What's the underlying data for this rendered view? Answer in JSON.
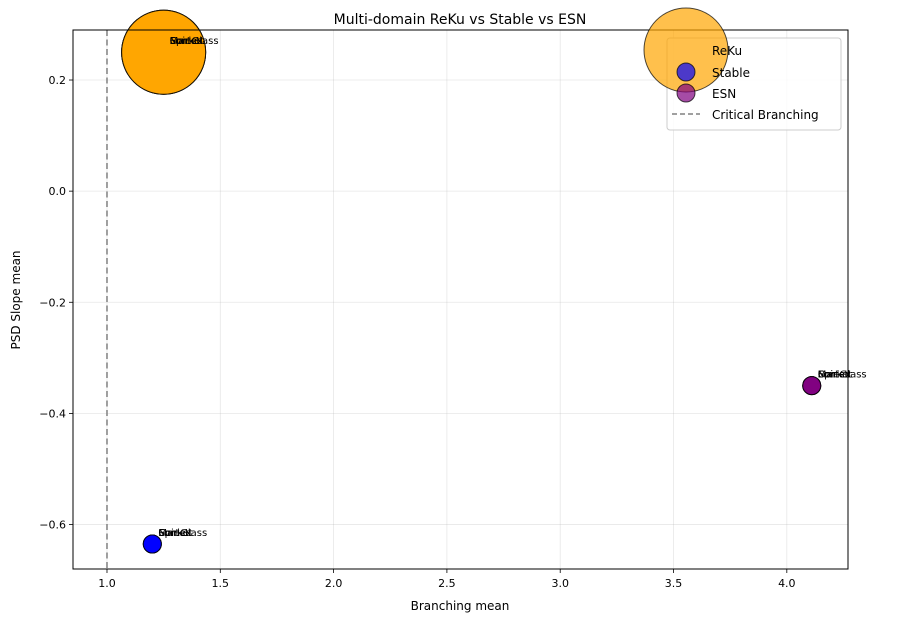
{
  "chart_data": {
    "type": "scatter",
    "title": "Multi-domain ReKu vs Stable vs ESN",
    "xlabel": "Branching mean",
    "ylabel": "PSD Slope mean",
    "xlim": [
      0.85,
      4.27
    ],
    "ylim": [
      -0.68,
      0.29
    ],
    "xticks": [
      1.0,
      1.5,
      2.0,
      2.5,
      3.0,
      3.5,
      4.0
    ],
    "xtick_labels": [
      "1.0",
      "1.5",
      "2.0",
      "2.5",
      "3.0",
      "3.5",
      "4.0"
    ],
    "yticks": [
      0.2,
      0.0,
      -0.2,
      -0.4,
      -0.6
    ],
    "ytick_labels": [
      "0.2",
      "0.0",
      "−0.2",
      "−0.4",
      "−0.6"
    ],
    "grid": true,
    "legend_position": "top-right",
    "reference_line": {
      "x": 1.0,
      "label": "Critical Branching",
      "style": "dashed",
      "color": "#808080"
    },
    "point_labels": [
      "SpinGlass",
      "Cortex",
      "Market",
      "Forest"
    ],
    "series": [
      {
        "name": "ReKu",
        "color": "#FFA500",
        "marker_size": "large",
        "points": [
          {
            "x": 1.25,
            "y": 0.25,
            "label": "SpinGlass"
          },
          {
            "x": 1.25,
            "y": 0.25,
            "label": "Cortex"
          },
          {
            "x": 1.25,
            "y": 0.25,
            "label": "Market"
          },
          {
            "x": 1.25,
            "y": 0.25,
            "label": "Forest"
          }
        ]
      },
      {
        "name": "Stable",
        "color": "#0000FF",
        "marker_size": "small",
        "points": [
          {
            "x": 1.2,
            "y": -0.635,
            "label": "SpinGlass"
          },
          {
            "x": 1.2,
            "y": -0.635,
            "label": "Cortex"
          },
          {
            "x": 1.2,
            "y": -0.635,
            "label": "Market"
          },
          {
            "x": 1.2,
            "y": -0.635,
            "label": "Forest"
          }
        ]
      },
      {
        "name": "ESN",
        "color": "#800080",
        "marker_size": "small",
        "points": [
          {
            "x": 4.11,
            "y": -0.35,
            "label": "SpinGlass"
          },
          {
            "x": 4.11,
            "y": -0.35,
            "label": "Cortex"
          },
          {
            "x": 4.11,
            "y": -0.35,
            "label": "Market"
          },
          {
            "x": 4.11,
            "y": -0.35,
            "label": "Forest"
          }
        ]
      }
    ]
  }
}
